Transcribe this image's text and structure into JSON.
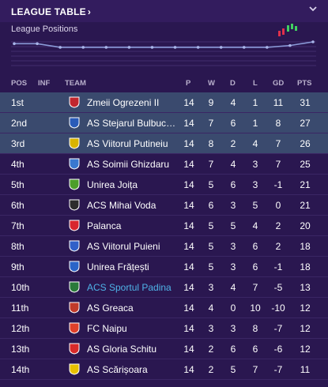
{
  "header": {
    "title": "LEAGUE TABLE",
    "title_chevron": "›"
  },
  "positions_label": "League Positions",
  "columns": {
    "pos": "POS",
    "inf": "INF",
    "team": "TEAM",
    "p": "P",
    "w": "W",
    "d": "D",
    "l": "L",
    "gd": "GD",
    "pts": "PTS"
  },
  "rows": [
    {
      "pos": "1st",
      "team": "Zmeii Ogrezeni II",
      "p": "14",
      "w": "9",
      "d": "4",
      "l": "1",
      "gd": "11",
      "pts": "31",
      "badge": "#c0262e",
      "promo": true
    },
    {
      "pos": "2nd",
      "team": "AS Stejarul Bulbucata",
      "p": "14",
      "w": "7",
      "d": "6",
      "l": "1",
      "gd": "8",
      "pts": "27",
      "badge": "#2a5bb8",
      "promo": true
    },
    {
      "pos": "3rd",
      "team": "AS Viitorul Putineiu",
      "p": "14",
      "w": "8",
      "d": "2",
      "l": "4",
      "gd": "7",
      "pts": "26",
      "badge": "#d8b400",
      "promo": true
    },
    {
      "pos": "4th",
      "team": "AS Soimii Ghizdaru",
      "p": "14",
      "w": "7",
      "d": "4",
      "l": "3",
      "gd": "7",
      "pts": "25",
      "badge": "#3a78d0",
      "promo": false
    },
    {
      "pos": "5th",
      "team": "Unirea Joița",
      "p": "14",
      "w": "5",
      "d": "6",
      "l": "3",
      "gd": "-1",
      "pts": "21",
      "badge": "#4c9e2a",
      "promo": false
    },
    {
      "pos": "6th",
      "team": "ACS Mihai Voda",
      "p": "14",
      "w": "6",
      "d": "3",
      "l": "5",
      "gd": "0",
      "pts": "21",
      "badge": "#2c2c2c",
      "promo": false
    },
    {
      "pos": "7th",
      "team": "Palanca",
      "p": "14",
      "w": "5",
      "d": "5",
      "l": "4",
      "gd": "2",
      "pts": "20",
      "badge": "#d8262e",
      "promo": false
    },
    {
      "pos": "8th",
      "team": "AS Viitorul Puieni",
      "p": "14",
      "w": "5",
      "d": "3",
      "l": "6",
      "gd": "2",
      "pts": "18",
      "badge": "#3060c8",
      "promo": false
    },
    {
      "pos": "9th",
      "team": "Unirea Frățești",
      "p": "14",
      "w": "5",
      "d": "3",
      "l": "6",
      "gd": "-1",
      "pts": "18",
      "badge": "#2a64c8",
      "promo": false
    },
    {
      "pos": "10th",
      "team": "ACS Sportul Padina",
      "p": "14",
      "w": "3",
      "d": "4",
      "l": "7",
      "gd": "-5",
      "pts": "13",
      "badge": "#2a7a3a",
      "promo": false,
      "link": true
    },
    {
      "pos": "11th",
      "team": "AS Greaca",
      "p": "14",
      "w": "4",
      "d": "0",
      "l": "10",
      "gd": "-10",
      "pts": "12",
      "badge": "#c03a2a",
      "promo": false
    },
    {
      "pos": "12th",
      "team": "FC Naipu",
      "p": "14",
      "w": "3",
      "d": "3",
      "l": "8",
      "gd": "-7",
      "pts": "12",
      "badge": "#e0402a",
      "promo": false
    },
    {
      "pos": "13th",
      "team": "AS Gloria Schitu",
      "p": "14",
      "w": "2",
      "d": "6",
      "l": "6",
      "gd": "-6",
      "pts": "12",
      "badge": "#d82a2a",
      "promo": false
    },
    {
      "pos": "14th",
      "team": "AS Scărișoara",
      "p": "14",
      "w": "2",
      "d": "5",
      "l": "7",
      "gd": "-7",
      "pts": "11",
      "badge": "#e8c000",
      "promo": false
    }
  ],
  "colors": {
    "background": "#2a1750",
    "promo_row": "#3a4a6e",
    "link_team": "#4fb3e8",
    "chart_line": "#8a9ad8"
  },
  "chart_data": {
    "type": "line",
    "x": [
      1,
      2,
      3,
      4,
      5,
      6,
      7,
      8,
      9,
      10,
      11,
      12,
      13,
      14
    ],
    "values": [
      2,
      2,
      4,
      4,
      4,
      4,
      4,
      4,
      4,
      4,
      4,
      4,
      3,
      1
    ],
    "ylim": [
      1,
      14
    ],
    "inverted_y": true,
    "grid": true
  }
}
